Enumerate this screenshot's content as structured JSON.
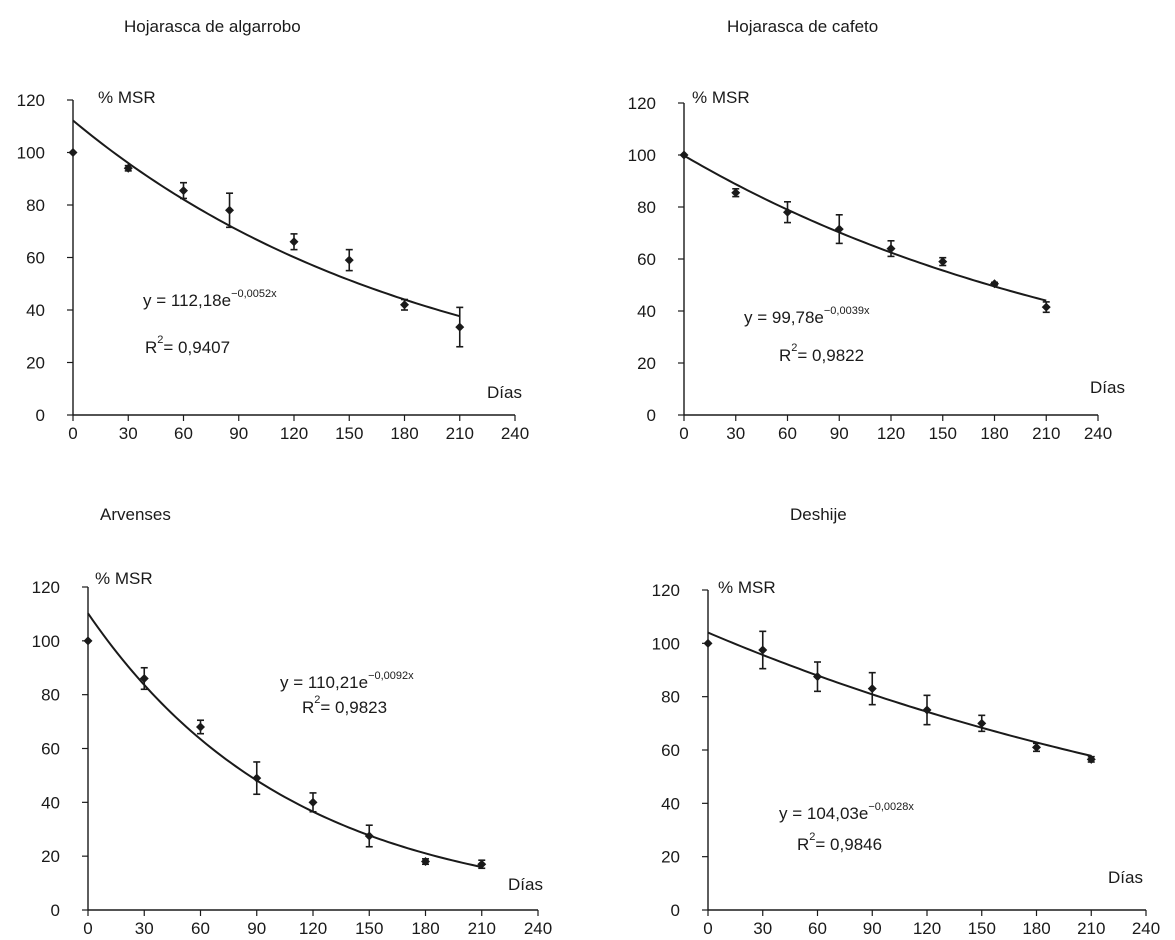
{
  "chart_data": [
    {
      "type": "scatter",
      "title": "Hojarasca de algarrobo",
      "ylabel": "% MSR",
      "xlabel": "Días",
      "xlim": [
        0,
        240
      ],
      "ylim": [
        0,
        120
      ],
      "xticks": [
        0,
        30,
        60,
        90,
        120,
        150,
        180,
        210,
        240
      ],
      "yticks": [
        0,
        20,
        40,
        60,
        80,
        100,
        120
      ],
      "x": [
        0,
        30,
        60,
        85,
        120,
        150,
        180,
        210
      ],
      "y": [
        100,
        94,
        85.5,
        78,
        66,
        59,
        42,
        33.5
      ],
      "error": [
        0,
        1,
        3,
        6.5,
        3,
        4,
        2,
        7.5
      ],
      "fit": {
        "a": 112.18,
        "b": -0.0052,
        "x_start": 0,
        "x_end": 210
      },
      "equation": {
        "prefix": "y = 112,18e",
        "exponent": "−0,0052x",
        "r2_label": "R",
        "r2_sup": "2",
        "r2_value": "= 0,9407"
      },
      "grid": false,
      "legend": "none"
    },
    {
      "type": "scatter",
      "title": "Hojarasca de cafeto",
      "ylabel": "% MSR",
      "xlabel": "Días",
      "xlim": [
        0,
        240
      ],
      "ylim": [
        0,
        120
      ],
      "xticks": [
        0,
        30,
        60,
        90,
        120,
        150,
        180,
        210,
        240
      ],
      "yticks": [
        0,
        20,
        40,
        60,
        80,
        100,
        120
      ],
      "x": [
        0,
        30,
        60,
        90,
        120,
        150,
        180,
        210
      ],
      "y": [
        100,
        85.5,
        78,
        71.5,
        64,
        59,
        50.5,
        41.5
      ],
      "error": [
        0,
        1.5,
        4,
        5.5,
        3,
        1.5,
        0.5,
        2
      ],
      "fit": {
        "a": 99.78,
        "b": -0.0039,
        "x_start": 0,
        "x_end": 210
      },
      "equation": {
        "prefix": "y = 99,78e",
        "exponent": "−0,0039x",
        "r2_label": "R",
        "r2_sup": "2",
        "r2_value": "= 0,9822"
      },
      "grid": false,
      "legend": "none"
    },
    {
      "type": "scatter",
      "title": "Arvenses",
      "ylabel": "% MSR",
      "xlabel": "Días",
      "xlim": [
        0,
        240
      ],
      "ylim": [
        0,
        120
      ],
      "xticks": [
        0,
        30,
        60,
        90,
        120,
        150,
        180,
        210,
        240
      ],
      "yticks": [
        0,
        20,
        40,
        60,
        80,
        100,
        120
      ],
      "x": [
        0,
        30,
        60,
        90,
        120,
        150,
        180,
        210
      ],
      "y": [
        100,
        86,
        68,
        49,
        40,
        27.5,
        18,
        17
      ],
      "error": [
        0,
        4,
        2.5,
        6,
        3.5,
        4,
        1,
        1.5
      ],
      "fit": {
        "a": 110.21,
        "b": -0.0092,
        "x_start": 0,
        "x_end": 210
      },
      "equation": {
        "prefix": "y = 110,21e",
        "exponent": "−0,0092x",
        "r2_label": "R",
        "r2_sup": "2",
        "r2_value": "= 0,9823"
      },
      "grid": false,
      "legend": "none"
    },
    {
      "type": "scatter",
      "title": "Deshije",
      "ylabel": "% MSR",
      "xlabel": "Días",
      "xlim": [
        0,
        240
      ],
      "ylim": [
        0,
        120
      ],
      "xticks": [
        0,
        30,
        60,
        90,
        120,
        150,
        180,
        210,
        240
      ],
      "yticks": [
        0,
        20,
        40,
        60,
        80,
        100,
        120
      ],
      "x": [
        0,
        30,
        60,
        90,
        120,
        150,
        180,
        210
      ],
      "y": [
        100,
        97.5,
        87.5,
        83,
        75,
        70,
        61,
        56.5
      ],
      "error": [
        0,
        7,
        5.5,
        6,
        5.5,
        3,
        1.5,
        1
      ],
      "fit": {
        "a": 104.03,
        "b": -0.0028,
        "x_start": 0,
        "x_end": 210
      },
      "equation": {
        "prefix": "y = 104,03e",
        "exponent": "−0,0028x",
        "r2_label": "R",
        "r2_sup": "2",
        "r2_value": "= 0,9846"
      },
      "grid": false,
      "legend": "none"
    }
  ]
}
